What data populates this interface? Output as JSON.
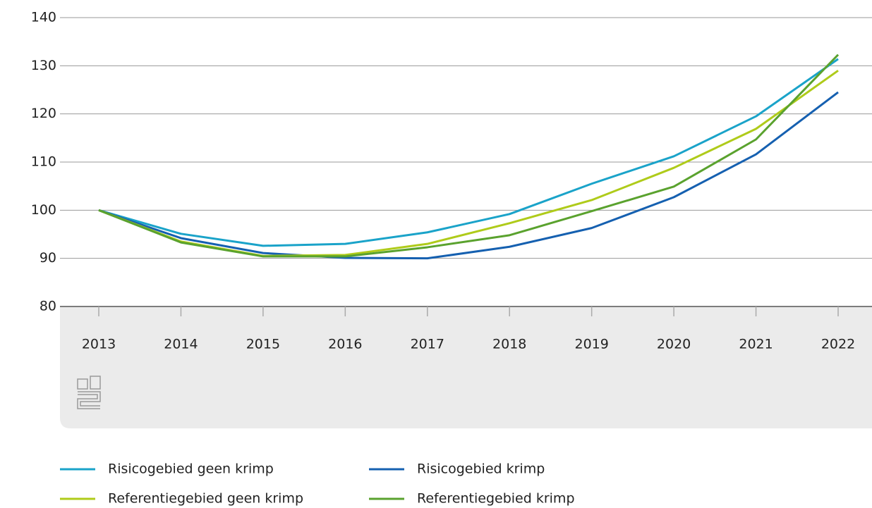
{
  "chart_data": {
    "type": "line",
    "x": [
      "2013",
      "2014",
      "2015",
      "2016",
      "2017",
      "2018",
      "2019",
      "2020",
      "2021",
      "2022"
    ],
    "series": [
      {
        "name": "Risicogebied geen krimp",
        "color": "#1aa3c9",
        "values": [
          100,
          95.1,
          92.6,
          93.0,
          95.4,
          99.2,
          105.5,
          111.2,
          119.5,
          131.4
        ]
      },
      {
        "name": "Risicogebied krimp",
        "color": "#1560b0",
        "values": [
          100,
          94.2,
          91.1,
          90.1,
          90.0,
          92.4,
          96.3,
          102.7,
          111.6,
          124.5
        ]
      },
      {
        "name": "Referentiegebied geen krimp",
        "color": "#afcb1a",
        "values": [
          100,
          93.5,
          90.5,
          90.7,
          93.0,
          97.3,
          102.1,
          108.8,
          116.9,
          129.0
        ]
      },
      {
        "name": "Referentiegebied krimp",
        "color": "#5aa22e",
        "values": [
          100,
          93.3,
          90.4,
          90.4,
          92.3,
          94.8,
          99.8,
          104.9,
          114.7,
          132.3
        ]
      }
    ],
    "ylim": [
      80,
      140
    ],
    "yticks": [
      80,
      90,
      100,
      110,
      120,
      130,
      140
    ],
    "grid": true
  }
}
